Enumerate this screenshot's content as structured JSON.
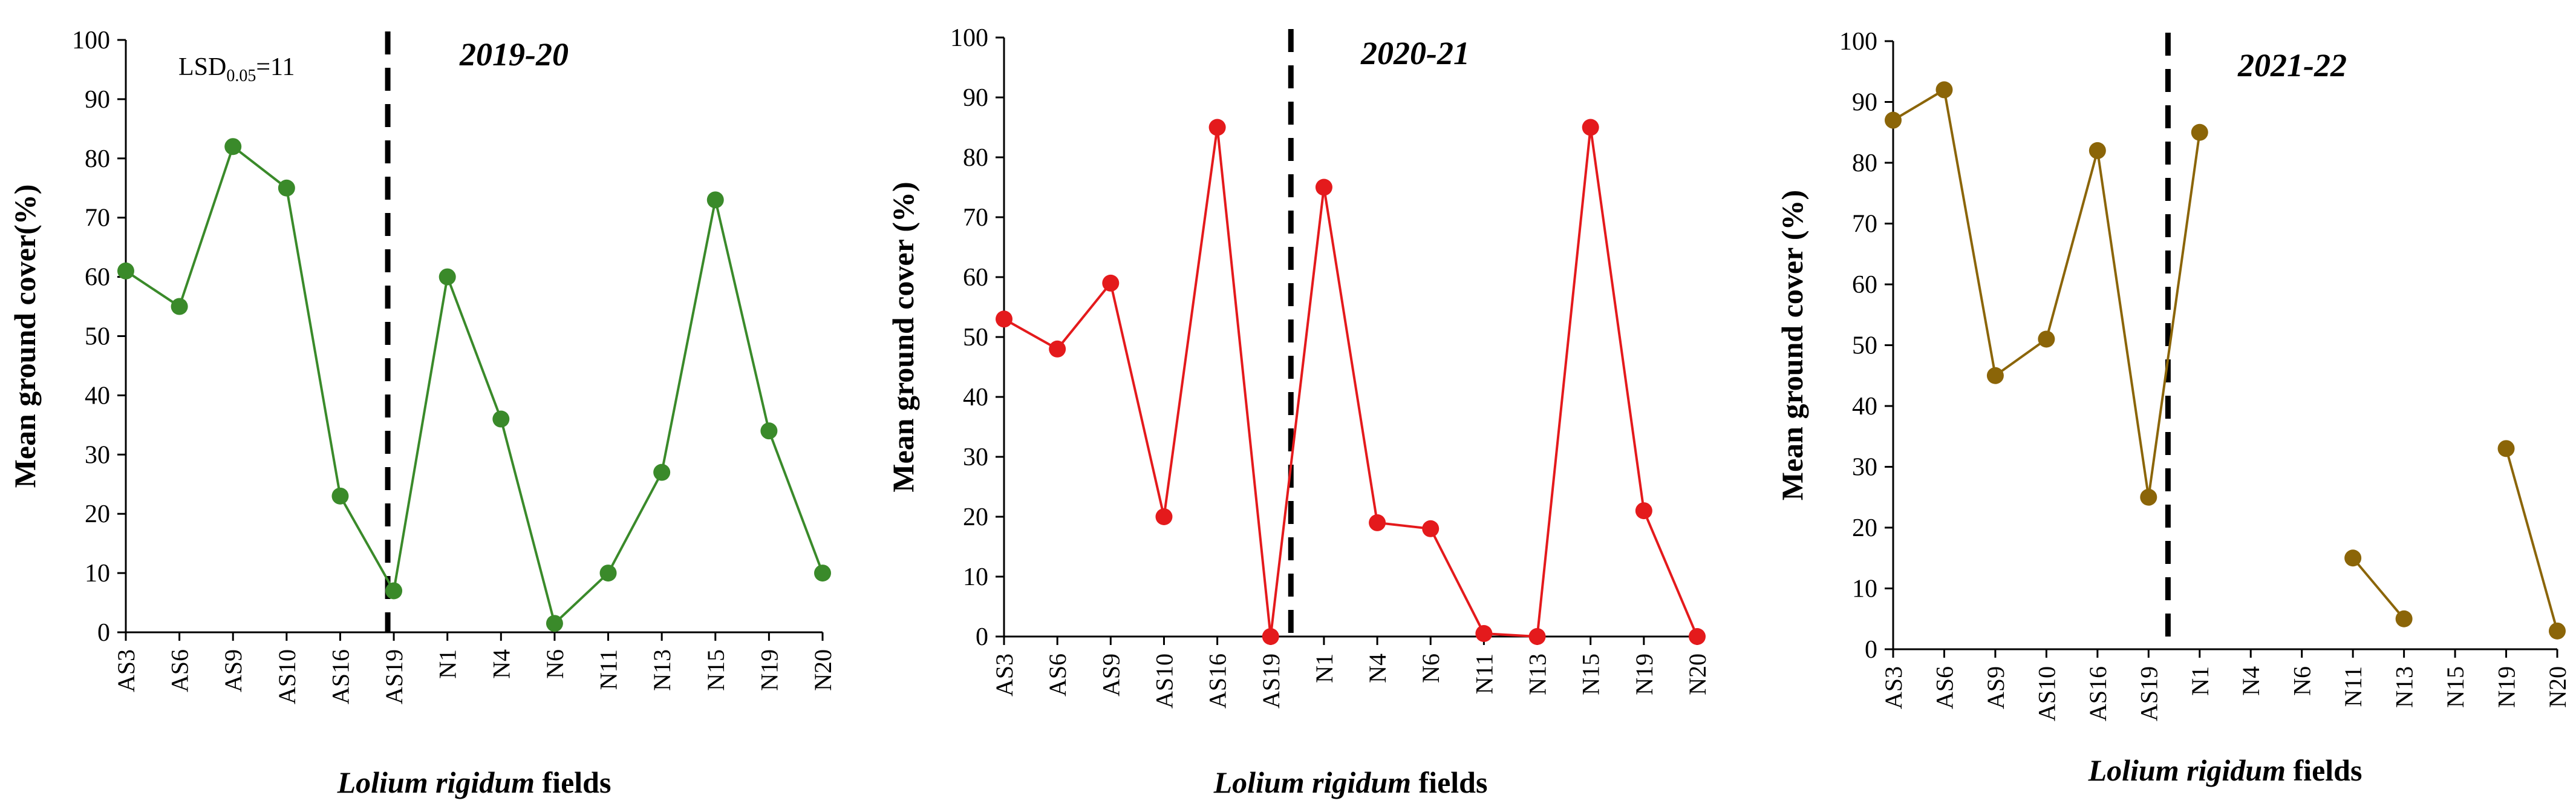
{
  "chart_data": [
    {
      "type": "line",
      "title": "2019-20",
      "annotation": {
        "text": "LSD",
        "sub": "0.05",
        "value": "=11"
      },
      "categories": [
        "AS3",
        "AS6",
        "AS9",
        "AS10",
        "AS16",
        "AS19",
        "N1",
        "N4",
        "N6",
        "N11",
        "N13",
        "N15",
        "N19",
        "N20"
      ],
      "series": [
        {
          "values": [
            61,
            55,
            82,
            75,
            23,
            7,
            60,
            36,
            1.5,
            10,
            27,
            73,
            34,
            10
          ]
        }
      ],
      "color": "#3a8a2a",
      "ylabel": "Mean ground cover(%)",
      "xlabel": {
        "italic": "Lolium rigidum",
        "rest": " fields"
      },
      "ylim": [
        0,
        100
      ],
      "yticks": [
        0,
        10,
        20,
        30,
        40,
        50,
        60,
        70,
        80,
        90,
        100
      ],
      "divider_after": "AS19",
      "grid": false
    },
    {
      "type": "line",
      "title": "2020-21",
      "annotation": null,
      "categories": [
        "AS3",
        "AS6",
        "AS9",
        "AS10",
        "AS16",
        "AS19",
        "N1",
        "N4",
        "N6",
        "N11",
        "N13",
        "N15",
        "N19",
        "N20"
      ],
      "series": [
        {
          "values": [
            53,
            48,
            59,
            20,
            85,
            0,
            75,
            19,
            18,
            0.5,
            0,
            85,
            21,
            0
          ]
        }
      ],
      "color": "#e41a1c",
      "ylabel": "Mean ground cover (%)",
      "xlabel": {
        "italic": "Lolium rigidum",
        "rest": " fields"
      },
      "ylim": [
        0,
        100
      ],
      "yticks": [
        0,
        10,
        20,
        30,
        40,
        50,
        60,
        70,
        80,
        90,
        100
      ],
      "divider_after": "AS19",
      "grid": false
    },
    {
      "type": "line",
      "title": "2021-22",
      "annotation": null,
      "categories": [
        "AS3",
        "AS6",
        "AS9",
        "AS10",
        "AS16",
        "AS19",
        "N1",
        "N4",
        "N6",
        "N11",
        "N13",
        "N15",
        "N19",
        "N20"
      ],
      "series": [
        {
          "values": [
            87,
            92,
            45,
            51,
            82,
            25,
            85,
            null,
            null,
            15,
            5,
            null,
            33,
            3
          ]
        }
      ],
      "color": "#8b6508",
      "ylabel": "Mean ground cover (%)",
      "xlabel": {
        "italic": "Lolium rigidum",
        "rest": " fields"
      },
      "ylim": [
        0,
        100
      ],
      "yticks": [
        0,
        10,
        20,
        30,
        40,
        50,
        60,
        70,
        80,
        90,
        100
      ],
      "divider_after": "AS19",
      "grid": false
    }
  ]
}
